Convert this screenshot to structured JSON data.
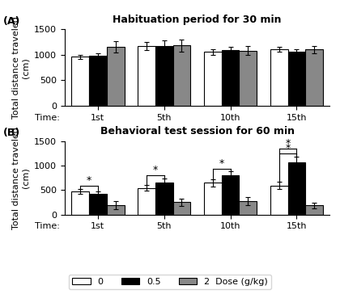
{
  "chart_data": [
    {
      "type": "bar",
      "panel_label": "(A)",
      "title": "Habituation period for 30 min",
      "x_label": "Time:",
      "y_label": "Total distance traveled\n(cm)",
      "categories": [
        "1st",
        "5th",
        "10th",
        "15th"
      ],
      "series": [
        {
          "name": "0",
          "color": "white",
          "values": [
            960,
            1175,
            1055,
            1105
          ],
          "errors": [
            40,
            85,
            55,
            50
          ]
        },
        {
          "name": "0.5",
          "color": "black",
          "values": [
            980,
            1180,
            1090,
            1060
          ],
          "errors": [
            50,
            100,
            65,
            45
          ]
        },
        {
          "name": "2  Dose (g/kg)",
          "color": "#888888",
          "values": [
            1155,
            1185,
            1085,
            1105
          ],
          "errors": [
            110,
            120,
            85,
            75
          ]
        }
      ],
      "ylim": [
        0,
        1500
      ],
      "yticks": [
        0,
        500,
        1000,
        1500
      ]
    },
    {
      "type": "bar",
      "panel_label": "(B)",
      "title": "Behavioral test session for 60 min",
      "x_label": "Time:",
      "y_label": "Total distance traveled\n(cm)",
      "categories": [
        "1st",
        "5th",
        "10th",
        "15th"
      ],
      "series": [
        {
          "name": "0",
          "color": "white",
          "values": [
            475,
            545,
            650,
            590
          ],
          "errors": [
            55,
            60,
            75,
            75
          ]
        },
        {
          "name": "0.5",
          "color": "black",
          "values": [
            420,
            650,
            800,
            1060
          ],
          "errors": [
            55,
            85,
            80,
            120
          ]
        },
        {
          "name": "2  Dose (g/kg)",
          "color": "#888888",
          "values": [
            195,
            255,
            275,
            185
          ],
          "errors": [
            85,
            75,
            80,
            65
          ]
        }
      ],
      "ylim": [
        0,
        1500
      ],
      "yticks": [
        0,
        500,
        1000,
        1500
      ],
      "annotations": [
        {
          "text": "*",
          "category": "1st",
          "between": [
            "0",
            "0.5"
          ]
        },
        {
          "text": "*",
          "category": "5th",
          "between": [
            "0",
            "0.5"
          ]
        },
        {
          "text": "*",
          "category": "10th",
          "between": [
            "0",
            "0.5"
          ]
        },
        {
          "text": "*",
          "category": "15th",
          "between": [
            "0",
            "0.5"
          ]
        },
        {
          "text": "*",
          "category": "15th",
          "between": [
            "0",
            "0.5"
          ]
        }
      ],
      "legend": "lower center"
    }
  ]
}
